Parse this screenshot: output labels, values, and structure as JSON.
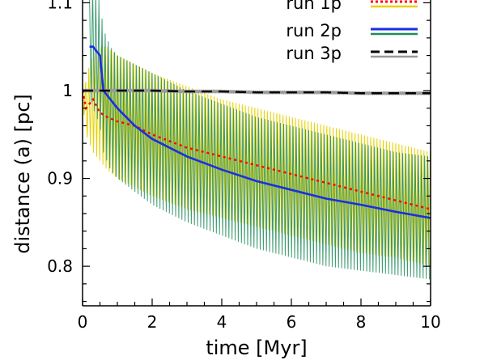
{
  "chart_data": {
    "type": "line",
    "xlabel": "time [Myr]",
    "ylabel": "distance (a) [pc]",
    "xlim": [
      0,
      10
    ],
    "ylim": [
      0.755,
      1.105
    ],
    "x_ticks": [
      "0",
      "2",
      "4",
      "6",
      "8",
      "10"
    ],
    "y_ticks": [
      "0.8",
      "0.9",
      "1",
      "1.1"
    ],
    "legend_position": "top-right",
    "series": [
      {
        "name": "run 1p",
        "line_color": "#ff0000",
        "line_style": "dotted",
        "band_color": "#e6d200",
        "x": [
          0,
          0.1,
          0.2,
          0.3,
          0.5,
          0.7,
          1.0,
          1.5,
          2,
          3,
          4,
          5,
          6,
          7,
          8,
          9,
          10
        ],
        "values": [
          1.0,
          0.98,
          0.985,
          0.99,
          0.975,
          0.97,
          0.965,
          0.96,
          0.95,
          0.935,
          0.925,
          0.915,
          0.905,
          0.895,
          0.885,
          0.875,
          0.865
        ],
        "band_high": [
          1.01,
          1.01,
          1.03,
          1.04,
          1.05,
          1.05,
          1.04,
          1.03,
          1.02,
          1.005,
          0.99,
          0.98,
          0.97,
          0.96,
          0.95,
          0.94,
          0.93
        ],
        "band_low": [
          0.99,
          0.95,
          0.94,
          0.93,
          0.92,
          0.91,
          0.9,
          0.89,
          0.88,
          0.865,
          0.855,
          0.845,
          0.835,
          0.825,
          0.815,
          0.81,
          0.8
        ]
      },
      {
        "name": "run 2p",
        "line_color": "#1a2fe0",
        "line_style": "solid",
        "band_color": "#1e8a5a",
        "x": [
          0.2,
          0.3,
          0.4,
          0.5,
          0.6,
          0.7,
          0.8,
          1.0,
          1.5,
          2,
          3,
          4,
          5,
          6,
          7,
          8,
          9,
          10
        ],
        "values": [
          1.05,
          1.05,
          1.045,
          1.04,
          1.0,
          0.995,
          0.99,
          0.98,
          0.96,
          0.945,
          0.925,
          0.91,
          0.897,
          0.887,
          0.877,
          0.87,
          0.862,
          0.855
        ],
        "band_high": [
          1.11,
          1.12,
          1.11,
          1.1,
          1.07,
          1.06,
          1.05,
          1.04,
          1.03,
          1.02,
          1.0,
          0.985,
          0.97,
          0.96,
          0.95,
          0.94,
          0.93,
          0.925
        ],
        "band_low": [
          0.99,
          0.98,
          0.97,
          0.96,
          0.93,
          0.92,
          0.91,
          0.9,
          0.885,
          0.87,
          0.85,
          0.835,
          0.82,
          0.81,
          0.8,
          0.795,
          0.79,
          0.785
        ]
      },
      {
        "name": "run 3p",
        "line_color": "#000000",
        "line_style": "dashed",
        "band_color": "#999999",
        "x": [
          0,
          1,
          2,
          3,
          4,
          5,
          6,
          7,
          8,
          9,
          10
        ],
        "values": [
          1.0,
          1.0,
          1.0,
          0.999,
          0.999,
          0.998,
          0.998,
          0.998,
          0.997,
          0.997,
          0.997
        ],
        "band_high": [
          1.002,
          1.002,
          1.002,
          1.001,
          1.001,
          1.0,
          1.0,
          1.0,
          0.999,
          0.999,
          0.999
        ],
        "band_low": [
          0.998,
          0.998,
          0.998,
          0.997,
          0.997,
          0.996,
          0.996,
          0.996,
          0.995,
          0.995,
          0.995
        ]
      }
    ]
  }
}
